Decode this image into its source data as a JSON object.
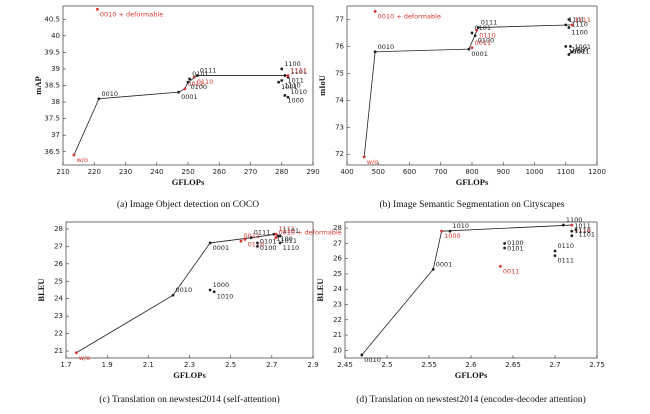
{
  "chart_data": [
    {
      "type": "scatter",
      "caption": "(a) Image Object detection on COCO",
      "xlabel": "GFLOPs",
      "ylabel": "mAP",
      "xlim": [
        210,
        290
      ],
      "xticks": [
        210,
        220,
        230,
        240,
        250,
        260,
        270,
        280,
        290
      ],
      "ylim": [
        36.1,
        40.9
      ],
      "yticks": [
        36.5,
        37,
        37.5,
        38,
        38.5,
        39,
        39.5,
        40,
        40.5
      ],
      "labels": [
        "w/o",
        "0010",
        "0001",
        "0011",
        "0100",
        "0101",
        "0110",
        "0111",
        "1000",
        "1010",
        "1001",
        "1101",
        "1110",
        "1100",
        "1011",
        "1111",
        "0010 + deformable"
      ],
      "x": [
        213.5,
        221.5,
        247,
        249,
        250,
        250.5,
        252,
        253,
        281,
        282,
        279,
        282,
        280,
        280,
        281,
        282,
        221
      ],
      "values": [
        36.4,
        38.1,
        38.3,
        38.4,
        38.6,
        38.7,
        38.75,
        38.8,
        38.2,
        38.15,
        38.6,
        38.75,
        38.65,
        39.0,
        38.8,
        38.8,
        40.8
      ],
      "colors": [
        "#d9342b",
        "#222222",
        "#222222",
        "#d9342b",
        "#222222",
        "#222222",
        "#d9342b",
        "#222222",
        "#222222",
        "#222222",
        "#222222",
        "#222222",
        "#222222",
        "#222222",
        "#222222",
        "#d9342b",
        "#d9342b"
      ],
      "line": [
        true,
        true,
        true,
        true,
        true,
        false,
        false,
        true,
        false,
        false,
        false,
        false,
        false,
        false,
        false,
        true,
        false
      ]
    },
    {
      "type": "scatter",
      "caption": "(b) Image Semantic Segmentation on Cityscapes",
      "xlabel": "GFLOPs",
      "ylabel": "mIoU",
      "xlim": [
        400,
        1200
      ],
      "xticks": [
        400,
        500,
        600,
        700,
        800,
        900,
        1000,
        1100,
        1200
      ],
      "ylim": [
        71.6,
        77.5
      ],
      "yticks": [
        72,
        73,
        74,
        75,
        76,
        77
      ],
      "labels": [
        "w/o",
        "0010",
        "0001",
        "0011",
        "0100",
        "0101",
        "0110",
        "0111",
        "1000",
        "1010",
        "1011",
        "1001",
        "1100",
        "1101",
        "1110",
        "1111",
        "0010 + deformable"
      ],
      "x": [
        455,
        490,
        790,
        800,
        810,
        800,
        815,
        820,
        1100,
        1110,
        1115,
        1120,
        1110,
        1100,
        1110,
        1120,
        490
      ],
      "values": [
        71.9,
        75.8,
        75.9,
        75.95,
        76.4,
        76.5,
        76.6,
        76.7,
        76.0,
        75.7,
        76.0,
        75.8,
        76.7,
        76.8,
        77.0,
        76.8,
        77.3
      ],
      "colors": [
        "#d9342b",
        "#222222",
        "#222222",
        "#d9342b",
        "#222222",
        "#222222",
        "#d9342b",
        "#222222",
        "#222222",
        "#222222",
        "#222222",
        "#222222",
        "#222222",
        "#222222",
        "#222222",
        "#d9342b",
        "#d9342b"
      ],
      "line": [
        true,
        true,
        true,
        false,
        false,
        false,
        false,
        true,
        false,
        false,
        false,
        false,
        false,
        false,
        false,
        true,
        false
      ]
    },
    {
      "type": "scatter",
      "caption": "(c) Translation on newstest2014 (self-attention)",
      "xlabel": "GFLOPs",
      "ylabel": "BLEU",
      "xlim": [
        1.7,
        2.9
      ],
      "xticks": [
        1.7,
        1.9,
        2.1,
        2.3,
        2.5,
        2.7,
        2.9
      ],
      "ylim": [
        20.6,
        28.4
      ],
      "yticks": [
        21,
        22,
        23,
        24,
        25,
        26,
        27,
        28
      ],
      "labels": [
        "w/o",
        "0010",
        "0001",
        "1000",
        "1010",
        "0011",
        "0110",
        "0111",
        "0100",
        "0101",
        "1100",
        "1111",
        "1011",
        "1101",
        "1110",
        "0010 + deformable"
      ],
      "x": [
        1.75,
        2.22,
        2.4,
        2.4,
        2.42,
        2.55,
        2.57,
        2.6,
        2.63,
        2.63,
        2.71,
        2.72,
        2.73,
        2.74,
        2.74,
        2.72
      ],
      "values": [
        20.9,
        24.2,
        27.2,
        24.5,
        24.4,
        27.3,
        27.4,
        27.5,
        27.2,
        27.0,
        27.7,
        27.7,
        27.6,
        27.6,
        27.2,
        27.5
      ],
      "colors": [
        "#d9342b",
        "#222222",
        "#222222",
        "#222222",
        "#222222",
        "#d9342b",
        "#d9342b",
        "#222222",
        "#222222",
        "#222222",
        "#222222",
        "#d9342b",
        "#222222",
        "#222222",
        "#222222",
        "#d9342b"
      ],
      "line": [
        true,
        true,
        true,
        false,
        false,
        false,
        false,
        true,
        false,
        false,
        false,
        true,
        false,
        false,
        false,
        false
      ]
    },
    {
      "type": "scatter",
      "caption": "(d) Translation on newstest2014 (encoder-decoder attention)",
      "xlabel": "GFLOPs",
      "ylabel": "BLEU",
      "xlim": [
        2.45,
        2.75
      ],
      "xticks": [
        2.45,
        2.5,
        2.55,
        2.6,
        2.65,
        2.7,
        2.75
      ],
      "ylim": [
        19.5,
        28.4
      ],
      "yticks": [
        20,
        21,
        22,
        23,
        24,
        25,
        26,
        27,
        28
      ],
      "labels": [
        "0010",
        "0001",
        "1000",
        "1010",
        "0101",
        "0100",
        "0011",
        "0110",
        "0111",
        "1100",
        "1111",
        "1011",
        "1101",
        "1110"
      ],
      "x": [
        2.47,
        2.555,
        2.565,
        2.575,
        2.64,
        2.64,
        2.635,
        2.7,
        2.7,
        2.71,
        2.72,
        2.72,
        2.725,
        2.72
      ],
      "values": [
        19.7,
        25.3,
        27.8,
        27.8,
        27.0,
        26.7,
        25.5,
        26.5,
        26.2,
        28.2,
        28.2,
        27.8,
        27.9,
        27.5
      ],
      "colors": [
        "#222222",
        "#222222",
        "#d9342b",
        "#222222",
        "#222222",
        "#222222",
        "#d9342b",
        "#222222",
        "#222222",
        "#222222",
        "#d9342b",
        "#222222",
        "#222222",
        "#222222"
      ],
      "line": [
        true,
        true,
        true,
        false,
        false,
        false,
        false,
        false,
        false,
        false,
        true,
        false,
        false,
        false
      ]
    }
  ]
}
